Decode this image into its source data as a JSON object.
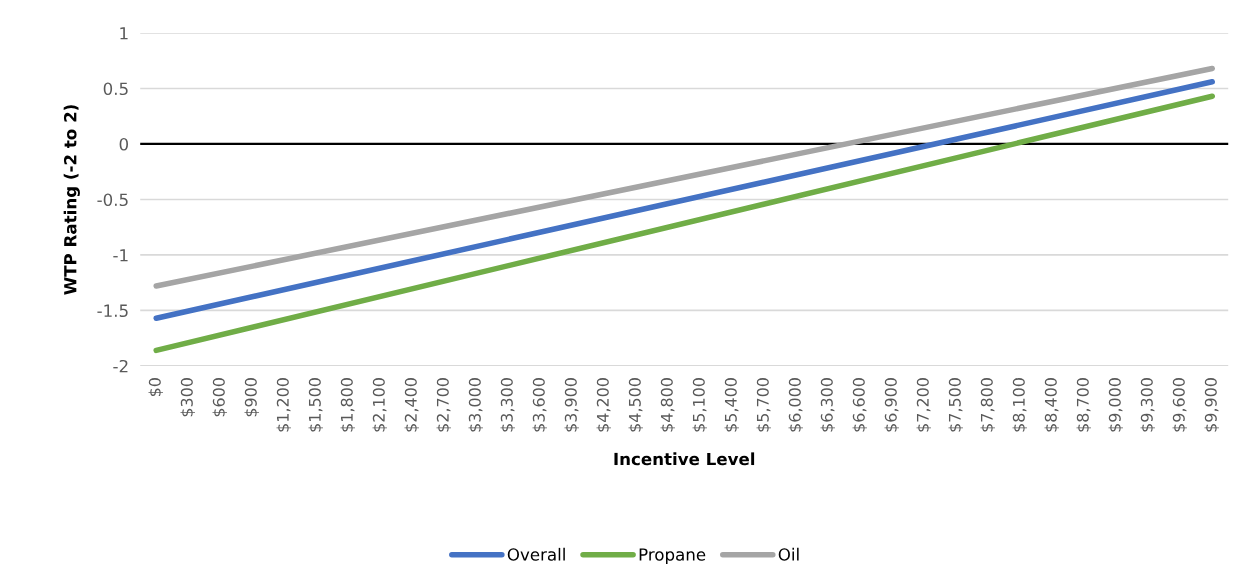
{
  "chart_data": {
    "type": "line",
    "xlabel": "Incentive Level",
    "ylabel": "WTP Rating (-2 to 2)",
    "xlim": [
      -150,
      10050
    ],
    "xticks": [
      {
        "value": 0,
        "label": "$0"
      },
      {
        "value": 300,
        "label": "$300"
      },
      {
        "value": 600,
        "label": "$600"
      },
      {
        "value": 900,
        "label": "$900"
      },
      {
        "value": 1200,
        "label": "$1,200"
      },
      {
        "value": 1500,
        "label": "$1,500"
      },
      {
        "value": 1800,
        "label": "$1,800"
      },
      {
        "value": 2100,
        "label": "$2,100"
      },
      {
        "value": 2400,
        "label": "$2,400"
      },
      {
        "value": 2700,
        "label": "$2,700"
      },
      {
        "value": 3000,
        "label": "$3,000"
      },
      {
        "value": 3300,
        "label": "$3,300"
      },
      {
        "value": 3600,
        "label": "$3,600"
      },
      {
        "value": 3900,
        "label": "$3,900"
      },
      {
        "value": 4200,
        "label": "$4,200"
      },
      {
        "value": 4500,
        "label": "$4,500"
      },
      {
        "value": 4800,
        "label": "$4,800"
      },
      {
        "value": 5100,
        "label": "$5,100"
      },
      {
        "value": 5400,
        "label": "$5,400"
      },
      {
        "value": 5700,
        "label": "$5,700"
      },
      {
        "value": 6000,
        "label": "$6,000"
      },
      {
        "value": 6300,
        "label": "$6,300"
      },
      {
        "value": 6600,
        "label": "$6,600"
      },
      {
        "value": 6900,
        "label": "$6,900"
      },
      {
        "value": 7200,
        "label": "$7,200"
      },
      {
        "value": 7500,
        "label": "$7,500"
      },
      {
        "value": 7800,
        "label": "$7,800"
      },
      {
        "value": 8100,
        "label": "$8,100"
      },
      {
        "value": 8400,
        "label": "$8,400"
      },
      {
        "value": 8700,
        "label": "$8,700"
      },
      {
        "value": 9000,
        "label": "$9,000"
      },
      {
        "value": 9300,
        "label": "$9,300"
      },
      {
        "value": 9600,
        "label": "$9,600"
      },
      {
        "value": 9900,
        "label": "$9,900"
      }
    ],
    "ylim": [
      -2,
      1
    ],
    "yticks": [
      -2,
      -1.5,
      -1,
      -0.5,
      0,
      0.5,
      1
    ],
    "grid": "y",
    "legend": "bottom",
    "marker": "none",
    "line_style": "solid",
    "ref_lines": [
      {
        "axis": "y",
        "value": 0,
        "color": "#000000"
      }
    ],
    "x": [
      0,
      9900
    ],
    "series": [
      {
        "name": "Overall",
        "color": "#4472c4",
        "values": [
          -1.57,
          0.56
        ]
      },
      {
        "name": "Propane",
        "color": "#70ad47",
        "values": [
          -1.86,
          0.43
        ]
      },
      {
        "name": "Oil",
        "color": "#a5a5a5",
        "values": [
          -1.28,
          0.68
        ]
      }
    ]
  }
}
